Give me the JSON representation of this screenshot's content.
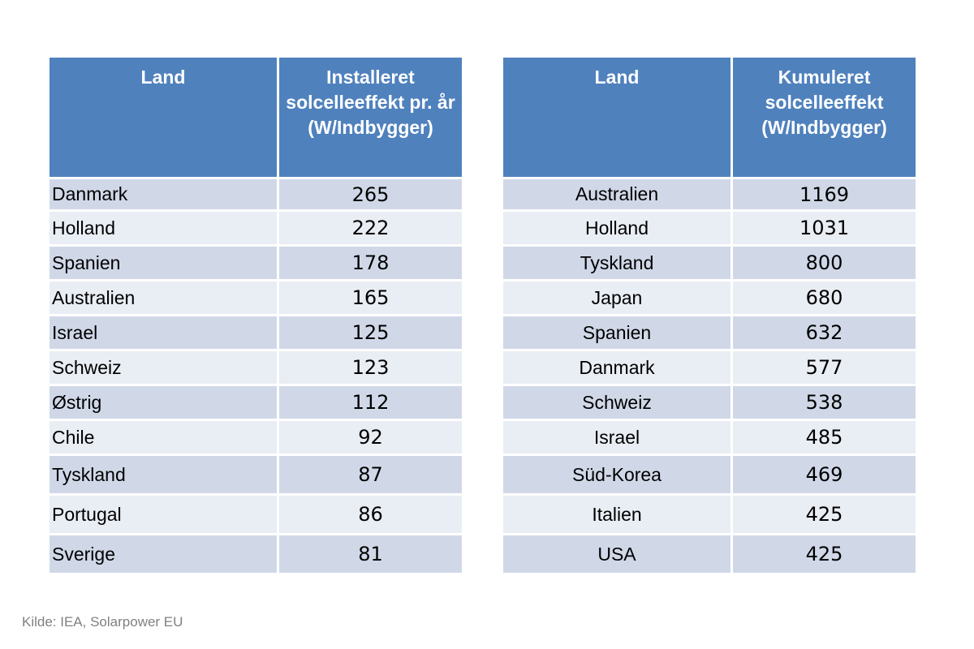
{
  "left_table": {
    "headers": [
      "Land",
      "Installeret solcelleeffekt pr. år (W/Indbygger)"
    ],
    "rows": [
      [
        "Danmark",
        "265"
      ],
      [
        "Holland",
        "222"
      ],
      [
        "Spanien",
        "178"
      ],
      [
        "Australien",
        "165"
      ],
      [
        "Israel",
        "125"
      ],
      [
        "Schweiz",
        "123"
      ],
      [
        "Østrig",
        "112"
      ],
      [
        "Chile",
        "92"
      ],
      [
        "Tyskland",
        "87"
      ],
      [
        "Portugal",
        "86"
      ],
      [
        "Sverige",
        "81"
      ]
    ]
  },
  "right_table": {
    "headers": [
      "Land",
      "Kumuleret solcelleeffekt (W/Indbygger)"
    ],
    "rows": [
      [
        "Australien",
        "1169"
      ],
      [
        "Holland",
        "1031"
      ],
      [
        "Tyskland",
        "800"
      ],
      [
        "Japan",
        "680"
      ],
      [
        "Spanien",
        "632"
      ],
      [
        "Danmark",
        "577"
      ],
      [
        "Schweiz",
        "538"
      ],
      [
        "Israel",
        "485"
      ],
      [
        "Süd-Korea",
        "469"
      ],
      [
        "Italien",
        "425"
      ],
      [
        "USA",
        "425"
      ]
    ]
  },
  "source": "Kilde: IEA, Solarpower EU",
  "colors": {
    "header_bg": "#4f81bd",
    "header_text": "#ffffff",
    "row_odd": "#d0d8e8",
    "row_even": "#e9edf4",
    "source_text": "#808080"
  }
}
